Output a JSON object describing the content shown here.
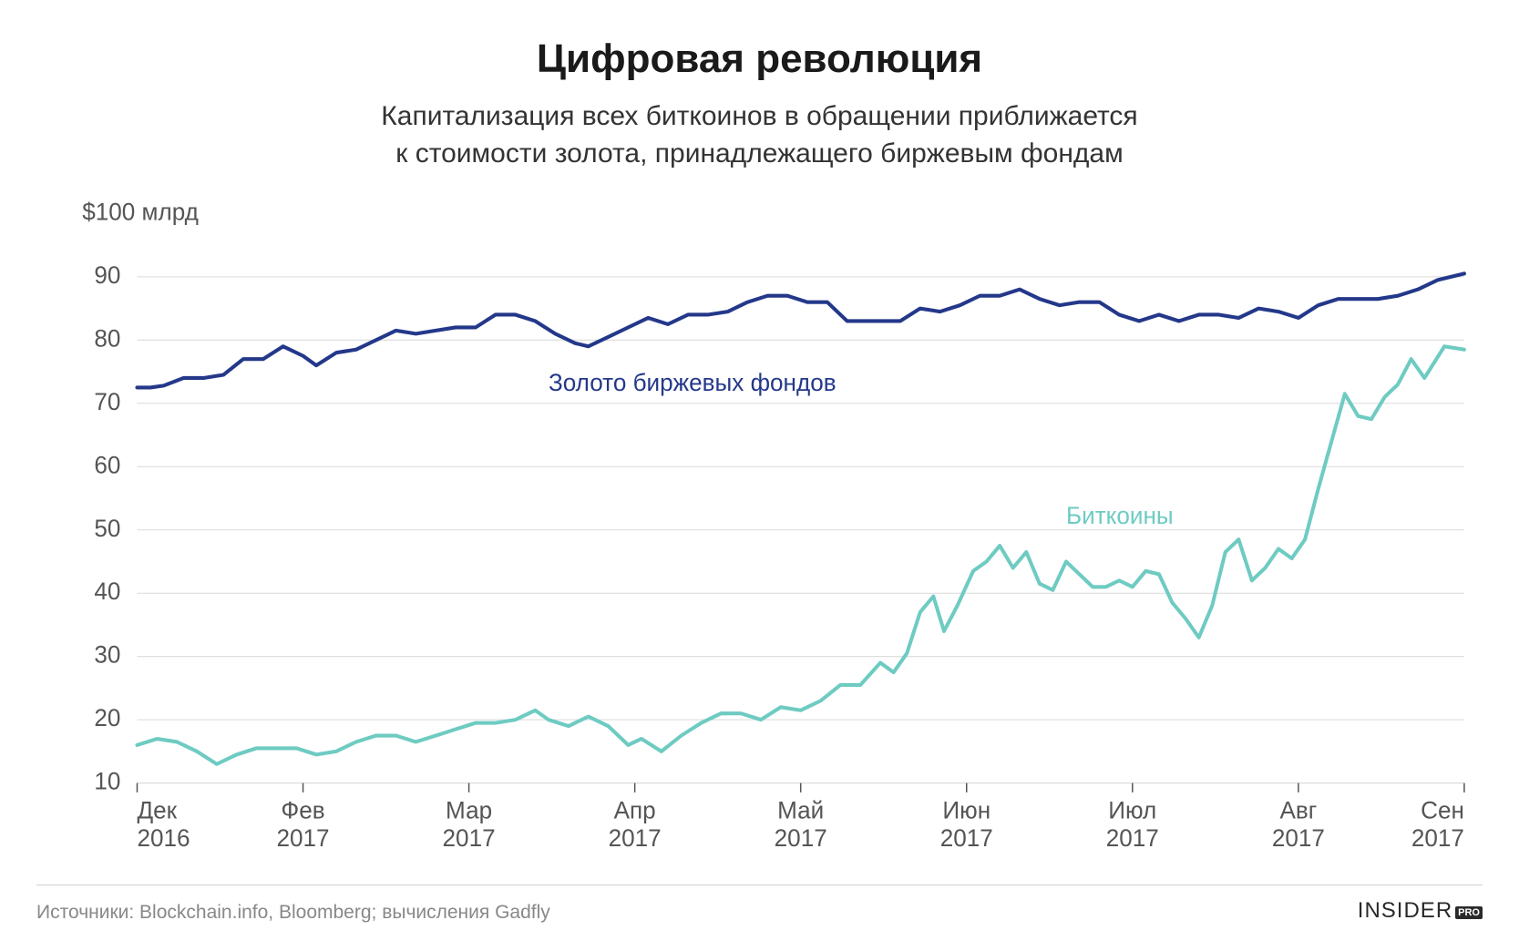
{
  "title": "Цифровая революция",
  "title_fontsize": 44,
  "subtitle_line1": "Капитализация всех биткоинов в обращении приближается",
  "subtitle_line2": "к стоимости золота, принадлежащего биржевым фондам",
  "subtitle_fontsize": 30,
  "source_text": "Источники: Blockchain.info, Bloomberg; вычисления Gadfly",
  "source_fontsize": 21,
  "brand_main": "INSIDER",
  "brand_pro": "PRO",
  "brand_fontsize": 24,
  "chart": {
    "type": "line",
    "background_color": "#ffffff",
    "grid_color": "#d9d9d9",
    "axis_color": "#555555",
    "tick_fontsize": 26,
    "y_axis_top_label": "$100 млрд",
    "ylim": [
      10,
      100
    ],
    "yticks": [
      10,
      20,
      30,
      40,
      50,
      60,
      70,
      80,
      90
    ],
    "xticks": [
      {
        "pos": 0,
        "line1": "Дек",
        "line2": "2016"
      },
      {
        "pos": 0.125,
        "line1": "Фев",
        "line2": "2017"
      },
      {
        "pos": 0.25,
        "line1": "Мар",
        "line2": "2017"
      },
      {
        "pos": 0.375,
        "line1": "Апр",
        "line2": "2017"
      },
      {
        "pos": 0.5,
        "line1": "Май",
        "line2": "2017"
      },
      {
        "pos": 0.625,
        "line1": "Июн",
        "line2": "2017"
      },
      {
        "pos": 0.75,
        "line1": "Июл",
        "line2": "2017"
      },
      {
        "pos": 0.875,
        "line1": "Авг",
        "line2": "2017"
      },
      {
        "pos": 1.0,
        "line1": "Сен",
        "line2": "2017"
      }
    ],
    "series": [
      {
        "name": "Золото биржевых фондов",
        "label": "Золото биржевых фондов",
        "label_x": 0.31,
        "label_y": 72,
        "color": "#24388a",
        "line_width": 4,
        "label_fontsize": 26,
        "data": [
          [
            0.0,
            72.5
          ],
          [
            0.01,
            72.5
          ],
          [
            0.02,
            72.8
          ],
          [
            0.035,
            74.0
          ],
          [
            0.05,
            74.0
          ],
          [
            0.065,
            74.5
          ],
          [
            0.08,
            77.0
          ],
          [
            0.095,
            77.0
          ],
          [
            0.11,
            79.0
          ],
          [
            0.125,
            77.5
          ],
          [
            0.135,
            76.0
          ],
          [
            0.15,
            78.0
          ],
          [
            0.165,
            78.5
          ],
          [
            0.18,
            80.0
          ],
          [
            0.195,
            81.5
          ],
          [
            0.21,
            81.0
          ],
          [
            0.225,
            81.5
          ],
          [
            0.24,
            82.0
          ],
          [
            0.255,
            82.0
          ],
          [
            0.27,
            84.0
          ],
          [
            0.285,
            84.0
          ],
          [
            0.3,
            83.0
          ],
          [
            0.315,
            81.0
          ],
          [
            0.33,
            79.5
          ],
          [
            0.34,
            79.0
          ],
          [
            0.355,
            80.5
          ],
          [
            0.37,
            82.0
          ],
          [
            0.385,
            83.5
          ],
          [
            0.4,
            82.5
          ],
          [
            0.415,
            84.0
          ],
          [
            0.43,
            84.0
          ],
          [
            0.445,
            84.5
          ],
          [
            0.46,
            86.0
          ],
          [
            0.475,
            87.0
          ],
          [
            0.49,
            87.0
          ],
          [
            0.505,
            86.0
          ],
          [
            0.52,
            86.0
          ],
          [
            0.535,
            83.0
          ],
          [
            0.55,
            83.0
          ],
          [
            0.56,
            83.0
          ],
          [
            0.575,
            83.0
          ],
          [
            0.59,
            85.0
          ],
          [
            0.605,
            84.5
          ],
          [
            0.62,
            85.5
          ],
          [
            0.635,
            87.0
          ],
          [
            0.65,
            87.0
          ],
          [
            0.665,
            88.0
          ],
          [
            0.68,
            86.5
          ],
          [
            0.695,
            85.5
          ],
          [
            0.71,
            86.0
          ],
          [
            0.725,
            86.0
          ],
          [
            0.74,
            84.0
          ],
          [
            0.755,
            83.0
          ],
          [
            0.77,
            84.0
          ],
          [
            0.785,
            83.0
          ],
          [
            0.8,
            84.0
          ],
          [
            0.815,
            84.0
          ],
          [
            0.83,
            83.5
          ],
          [
            0.845,
            85.0
          ],
          [
            0.86,
            84.5
          ],
          [
            0.875,
            83.5
          ],
          [
            0.89,
            85.5
          ],
          [
            0.905,
            86.5
          ],
          [
            0.92,
            86.5
          ],
          [
            0.935,
            86.5
          ],
          [
            0.95,
            87.0
          ],
          [
            0.965,
            88.0
          ],
          [
            0.98,
            89.5
          ],
          [
            1.0,
            90.5
          ]
        ]
      },
      {
        "name": "Биткоины",
        "label": "Биткоины",
        "label_x": 0.7,
        "label_y": 51,
        "color": "#6ecbc2",
        "line_width": 4,
        "label_fontsize": 26,
        "data": [
          [
            0.0,
            16.0
          ],
          [
            0.015,
            17.0
          ],
          [
            0.03,
            16.5
          ],
          [
            0.045,
            15.0
          ],
          [
            0.06,
            13.0
          ],
          [
            0.075,
            14.5
          ],
          [
            0.09,
            15.5
          ],
          [
            0.105,
            15.5
          ],
          [
            0.12,
            15.5
          ],
          [
            0.135,
            14.5
          ],
          [
            0.15,
            15.0
          ],
          [
            0.165,
            16.5
          ],
          [
            0.18,
            17.5
          ],
          [
            0.195,
            17.5
          ],
          [
            0.21,
            16.5
          ],
          [
            0.225,
            17.5
          ],
          [
            0.24,
            18.5
          ],
          [
            0.255,
            19.5
          ],
          [
            0.27,
            19.5
          ],
          [
            0.285,
            20.0
          ],
          [
            0.3,
            21.5
          ],
          [
            0.31,
            20.0
          ],
          [
            0.325,
            19.0
          ],
          [
            0.34,
            20.5
          ],
          [
            0.355,
            19.0
          ],
          [
            0.37,
            16.0
          ],
          [
            0.38,
            17.0
          ],
          [
            0.395,
            15.0
          ],
          [
            0.41,
            17.5
          ],
          [
            0.425,
            19.5
          ],
          [
            0.44,
            21.0
          ],
          [
            0.455,
            21.0
          ],
          [
            0.47,
            20.0
          ],
          [
            0.485,
            22.0
          ],
          [
            0.5,
            21.5
          ],
          [
            0.515,
            23.0
          ],
          [
            0.53,
            25.5
          ],
          [
            0.545,
            25.5
          ],
          [
            0.56,
            29.0
          ],
          [
            0.57,
            27.5
          ],
          [
            0.58,
            30.5
          ],
          [
            0.59,
            37.0
          ],
          [
            0.6,
            39.5
          ],
          [
            0.608,
            34.0
          ],
          [
            0.618,
            38.0
          ],
          [
            0.63,
            43.5
          ],
          [
            0.64,
            45.0
          ],
          [
            0.65,
            47.5
          ],
          [
            0.66,
            44.0
          ],
          [
            0.67,
            46.5
          ],
          [
            0.68,
            41.5
          ],
          [
            0.69,
            40.5
          ],
          [
            0.7,
            45.0
          ],
          [
            0.71,
            43.0
          ],
          [
            0.72,
            41.0
          ],
          [
            0.73,
            41.0
          ],
          [
            0.74,
            42.0
          ],
          [
            0.75,
            41.0
          ],
          [
            0.76,
            43.5
          ],
          [
            0.77,
            43.0
          ],
          [
            0.78,
            38.5
          ],
          [
            0.79,
            36.0
          ],
          [
            0.8,
            33.0
          ],
          [
            0.81,
            38.0
          ],
          [
            0.82,
            46.5
          ],
          [
            0.83,
            48.5
          ],
          [
            0.84,
            42.0
          ],
          [
            0.85,
            44.0
          ],
          [
            0.86,
            47.0
          ],
          [
            0.87,
            45.5
          ],
          [
            0.88,
            48.5
          ],
          [
            0.89,
            56.5
          ],
          [
            0.9,
            64.0
          ],
          [
            0.91,
            71.5
          ],
          [
            0.92,
            68.0
          ],
          [
            0.93,
            67.5
          ],
          [
            0.94,
            71.0
          ],
          [
            0.95,
            73.0
          ],
          [
            0.96,
            77.0
          ],
          [
            0.97,
            74.0
          ],
          [
            0.985,
            79.0
          ],
          [
            1.0,
            78.5
          ]
        ]
      }
    ]
  }
}
